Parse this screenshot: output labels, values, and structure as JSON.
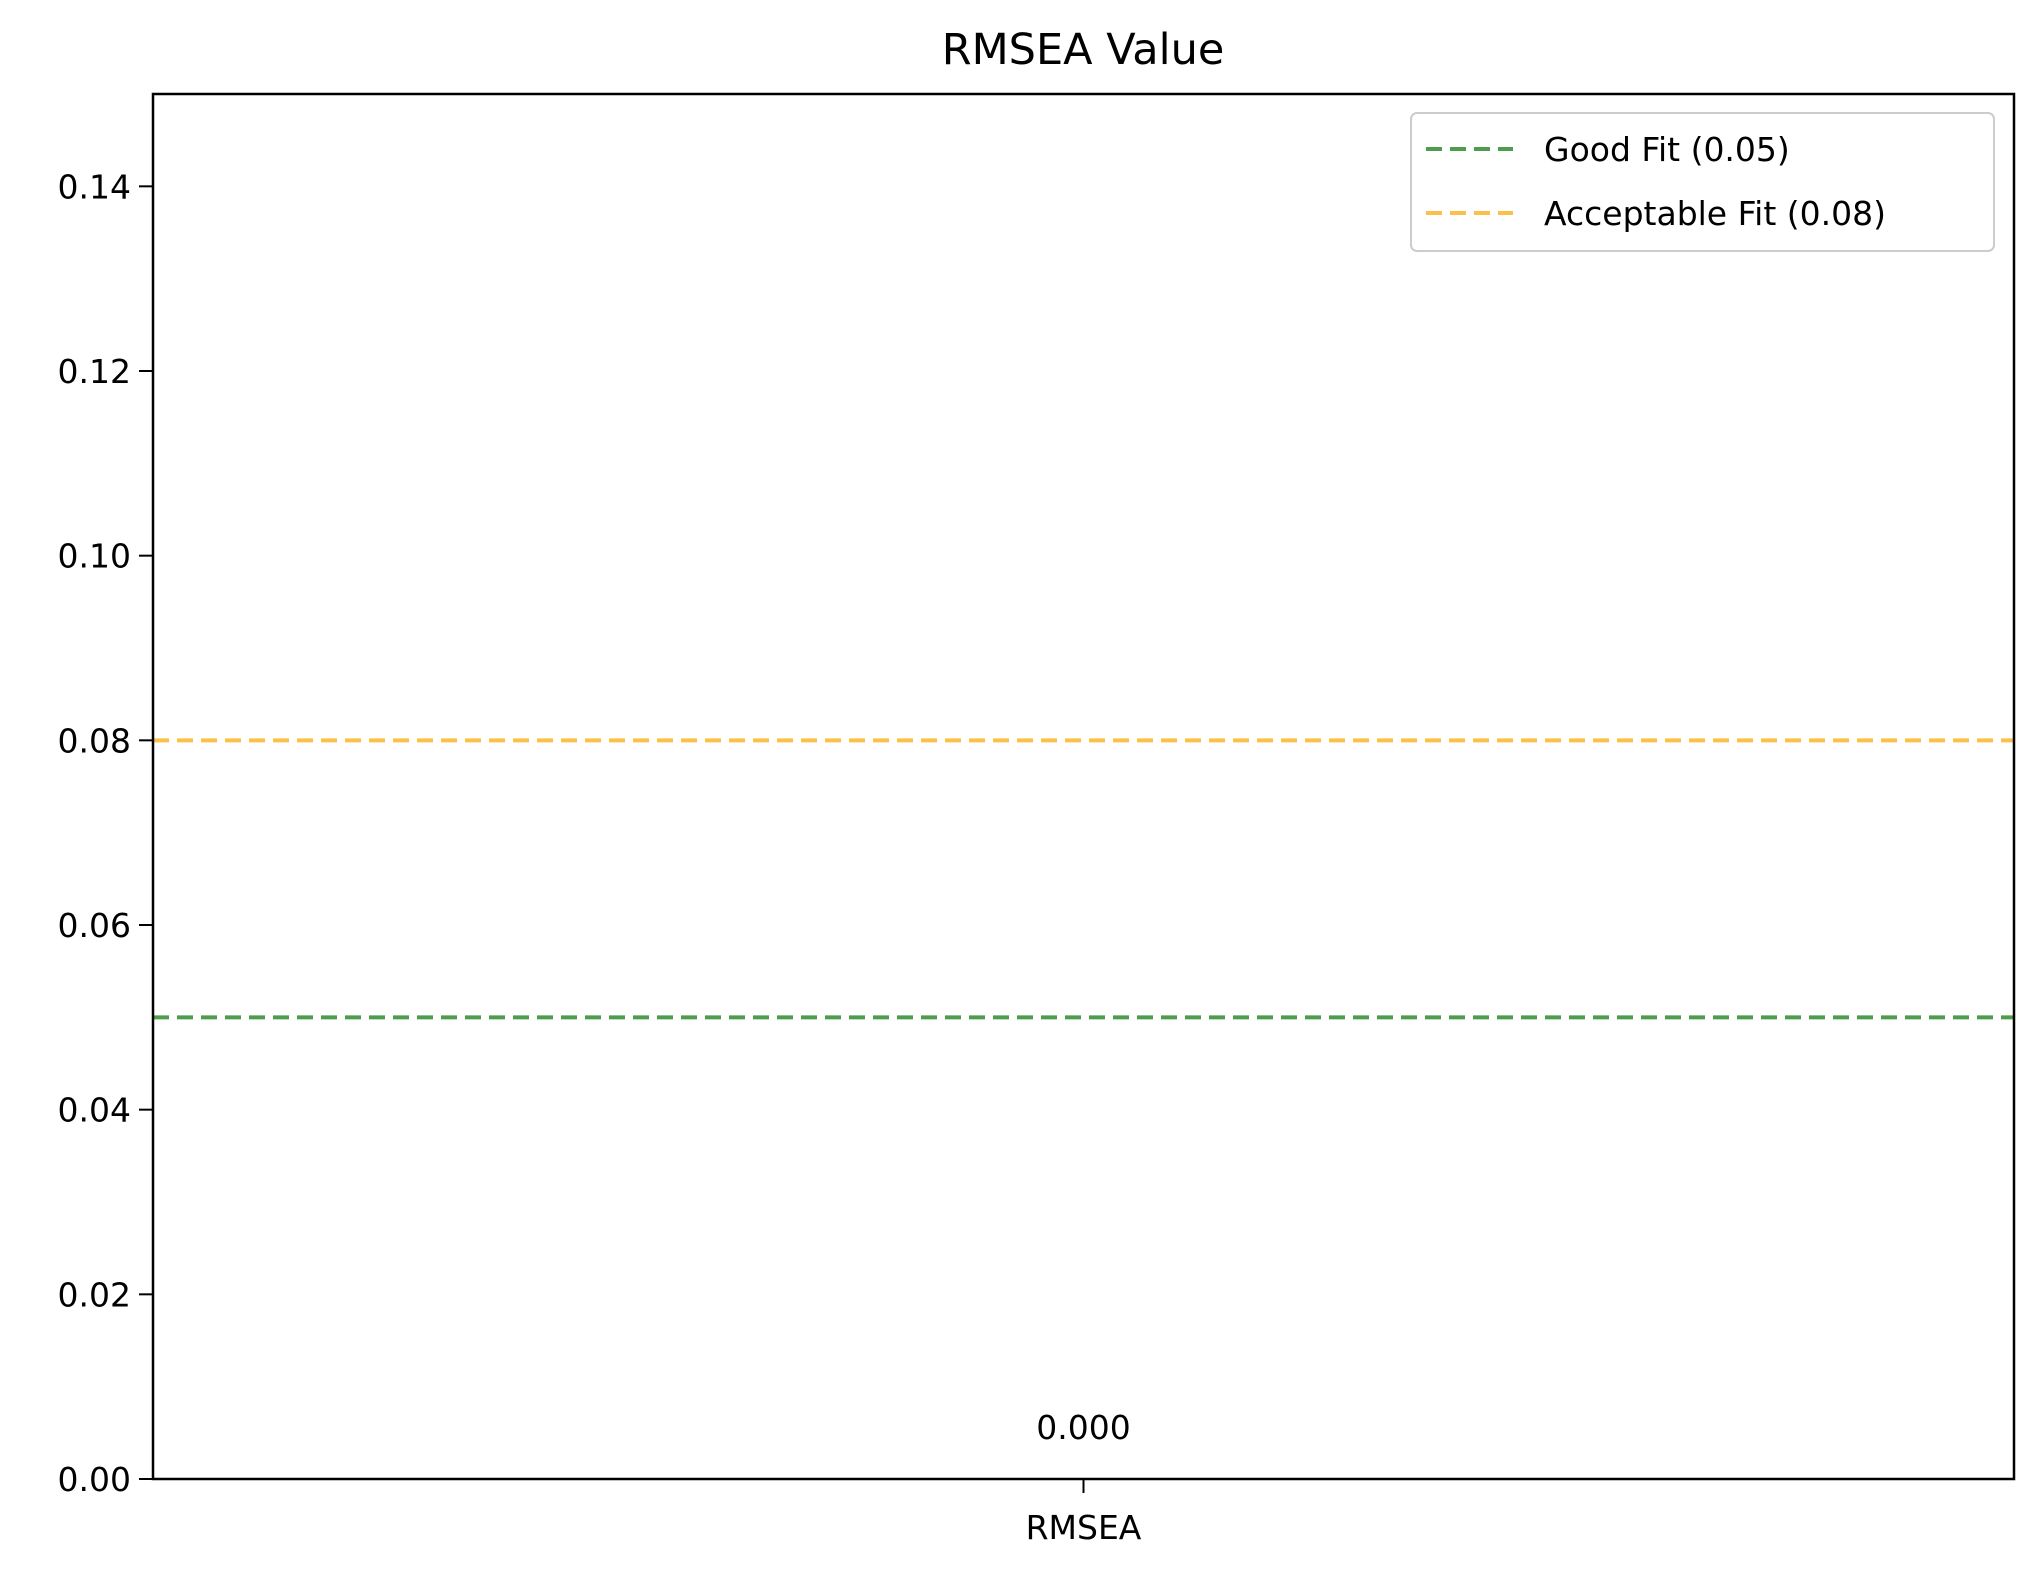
{
  "chart_data": {
    "type": "bar",
    "title": "RMSEA Value",
    "xlabel": "",
    "ylabel": "",
    "categories": [
      "RMSEA"
    ],
    "values": [
      0.0
    ],
    "value_labels": [
      "0.000"
    ],
    "ylim": [
      0,
      0.15
    ],
    "yticks": [
      0.0,
      0.02,
      0.04,
      0.06,
      0.08,
      0.1,
      0.12,
      0.14
    ],
    "ytick_labels": [
      "0.00",
      "0.02",
      "0.04",
      "0.06",
      "0.08",
      "0.10",
      "0.12",
      "0.14"
    ],
    "grid": false,
    "legend_position": "top-right",
    "reference_lines": [
      {
        "name": "Good Fit (0.05)",
        "value": 0.05,
        "color": "#4e9d4e",
        "style": "dashed"
      },
      {
        "name": "Acceptable Fit (0.08)",
        "value": 0.08,
        "color": "#fbbf4a",
        "style": "dashed"
      }
    ]
  }
}
